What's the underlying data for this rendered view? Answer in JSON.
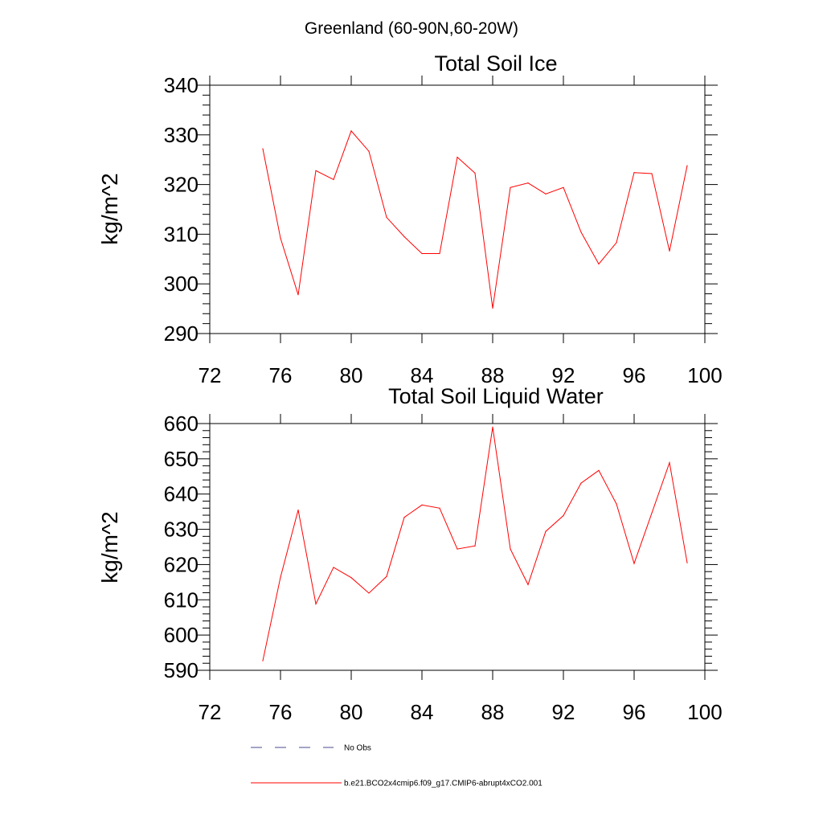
{
  "figure": {
    "title": "Greenland (60-90N,60-20W)"
  },
  "colors": {
    "model": "#ff0000",
    "obs": "#4a4a8c",
    "axis": "#000000"
  },
  "chart_data": [
    {
      "type": "line",
      "title": "Total Soil Ice",
      "xlabel": "",
      "ylabel": "kg/m^2",
      "xlim": [
        72,
        100
      ],
      "ylim": [
        290,
        340
      ],
      "xticks": [
        72,
        76,
        80,
        84,
        88,
        92,
        96,
        100
      ],
      "yticks": [
        290,
        300,
        310,
        320,
        330,
        340
      ],
      "x": [
        75,
        76,
        77,
        78,
        79,
        80,
        81,
        82,
        83,
        84,
        85,
        86,
        87,
        88,
        89,
        90,
        91,
        92,
        93,
        94,
        95,
        96,
        97,
        98,
        99
      ],
      "series": [
        {
          "name": "b.e21.BCO2x4cmip6.f09_g17.CMIP6-abrupt4xCO2.001",
          "values": [
            327.2,
            309.2,
            297.8,
            322.8,
            321.0,
            330.8,
            326.7,
            313.4,
            309.5,
            306.1,
            306.1,
            325.5,
            322.3,
            295.1,
            319.4,
            320.3,
            318.1,
            319.4,
            310.4,
            304.0,
            308.3,
            322.4,
            322.2,
            306.6,
            323.8
          ]
        }
      ]
    },
    {
      "type": "line",
      "title": "Total Soil Liquid Water",
      "xlabel": "",
      "ylabel": "kg/m^2",
      "xlim": [
        72,
        100
      ],
      "ylim": [
        590,
        660
      ],
      "xticks": [
        72,
        76,
        80,
        84,
        88,
        92,
        96,
        100
      ],
      "yticks": [
        590,
        600,
        610,
        620,
        630,
        640,
        650,
        660
      ],
      "x": [
        75,
        76,
        77,
        78,
        79,
        80,
        81,
        82,
        83,
        84,
        85,
        86,
        87,
        88,
        89,
        90,
        91,
        92,
        93,
        94,
        95,
        96,
        97,
        98,
        99
      ],
      "series": [
        {
          "name": "b.e21.BCO2x4cmip6.f09_g17.CMIP6-abrupt4xCO2.001",
          "values": [
            592.7,
            616.4,
            635.5,
            608.8,
            619.2,
            616.3,
            611.9,
            616.6,
            633.4,
            636.9,
            636.0,
            624.4,
            625.3,
            659.0,
            624.4,
            614.3,
            629.4,
            633.9,
            643.1,
            646.7,
            637.2,
            620.3,
            634.6,
            648.9,
            620.5
          ]
        }
      ]
    }
  ],
  "legend": {
    "placement": "bottom",
    "items": [
      {
        "label": "No Obs",
        "style": "dashed"
      },
      {
        "label": "b.e21.BCO2x4cmip6.f09_g17.CMIP6-abrupt4xCO2.001",
        "style": "solid"
      }
    ]
  }
}
